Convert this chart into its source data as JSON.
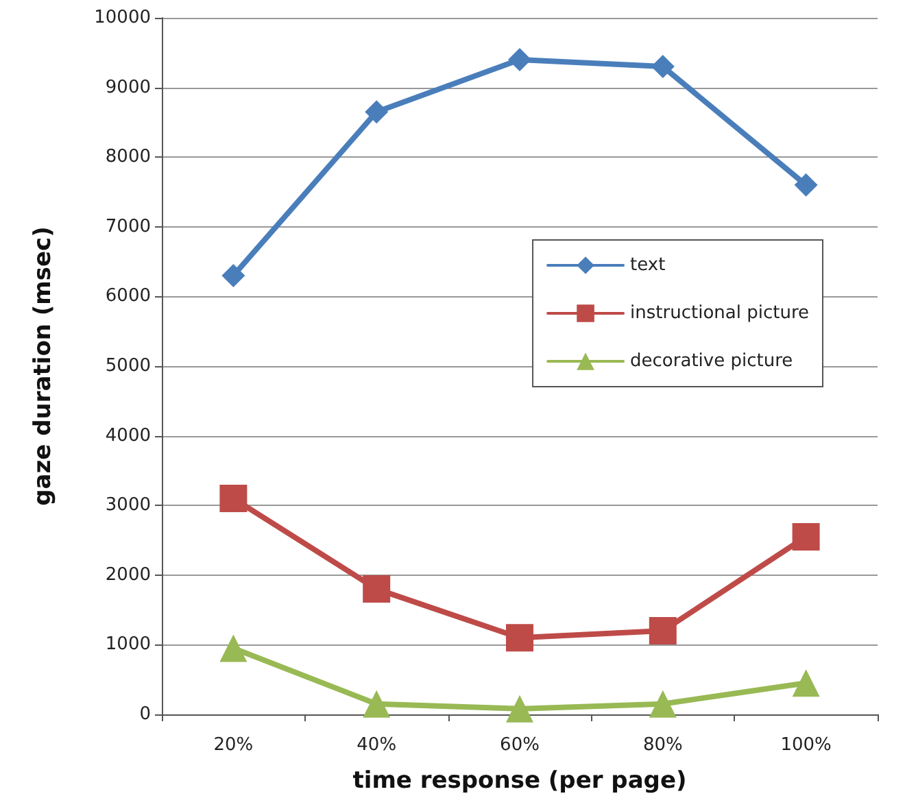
{
  "chart_data": {
    "type": "line",
    "xlabel": "time response (per page)",
    "ylabel": "gaze duration (msec)",
    "categories": [
      "20%",
      "40%",
      "60%",
      "80%",
      "100%"
    ],
    "series": [
      {
        "name": "text",
        "color": "#4a7ebb",
        "marker": "diamond",
        "values": [
          6300,
          8650,
          9400,
          9300,
          7600
        ]
      },
      {
        "name": "instructional picture",
        "color": "#be4b48",
        "marker": "square",
        "values": [
          3100,
          1800,
          1100,
          1200,
          2550
        ]
      },
      {
        "name": "decorative picture",
        "color": "#98b954",
        "marker": "triangle",
        "values": [
          950,
          150,
          80,
          150,
          450
        ]
      }
    ],
    "ylim": [
      0,
      10000
    ],
    "yticks": [
      0,
      1000,
      2000,
      3000,
      4000,
      5000,
      6000,
      7000,
      8000,
      9000,
      10000
    ],
    "grid": "y",
    "legend": "right",
    "line_style": "solid"
  }
}
